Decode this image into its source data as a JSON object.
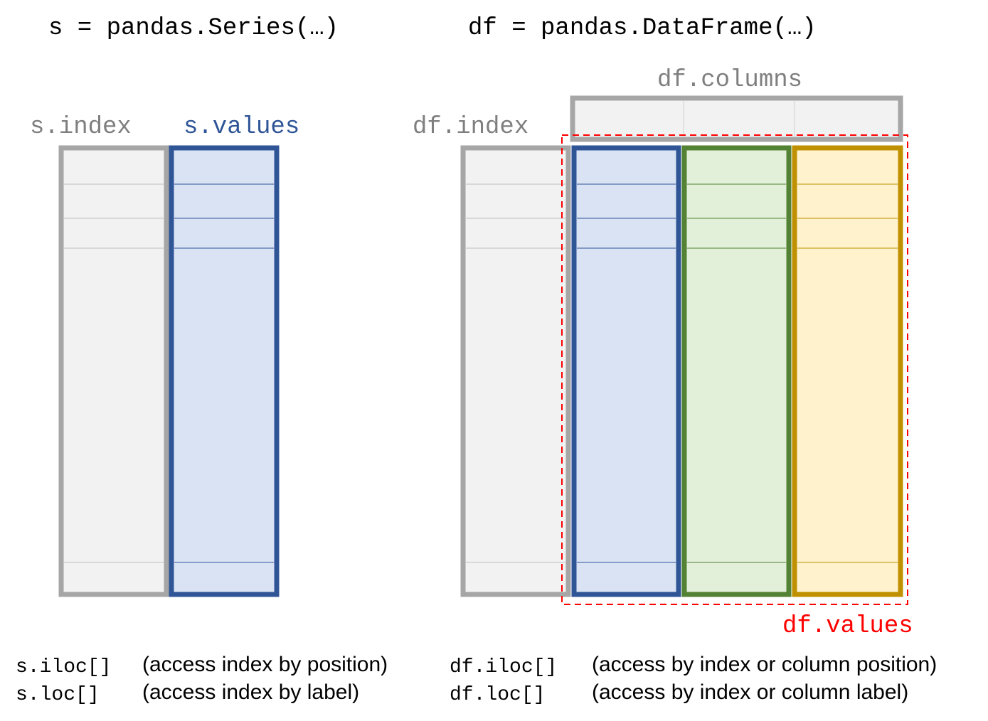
{
  "series_section": {
    "heading": "s = pandas.Series(…)",
    "index_label": "s.index",
    "values_label": "s.values",
    "accessors": [
      {
        "code": "s.iloc[]",
        "description": "(access index by position)"
      },
      {
        "code": "s.loc[]",
        "description": "(access index by label)"
      }
    ]
  },
  "dataframe_section": {
    "heading": "df = pandas.DataFrame(…)",
    "columns_label": "df.columns",
    "index_label": "df.index",
    "values_label": "df.values",
    "accessors": [
      {
        "code": "df.iloc[]",
        "description": "(access by index or column position)"
      },
      {
        "code": "df.loc[]",
        "description": "(access by index or column label)"
      }
    ]
  },
  "colors": {
    "index_gray": "#a6a6a6",
    "index_fill": "#f2f2f2",
    "blue_border": "#2f5597",
    "blue_fill": "#dae3f3",
    "green_border": "#548235",
    "green_fill": "#e2f0d9",
    "gold_border": "#bf9000",
    "gold_fill": "#fff2cc",
    "values_red": "#ff0000",
    "label_gray": "#7f7f7f"
  }
}
